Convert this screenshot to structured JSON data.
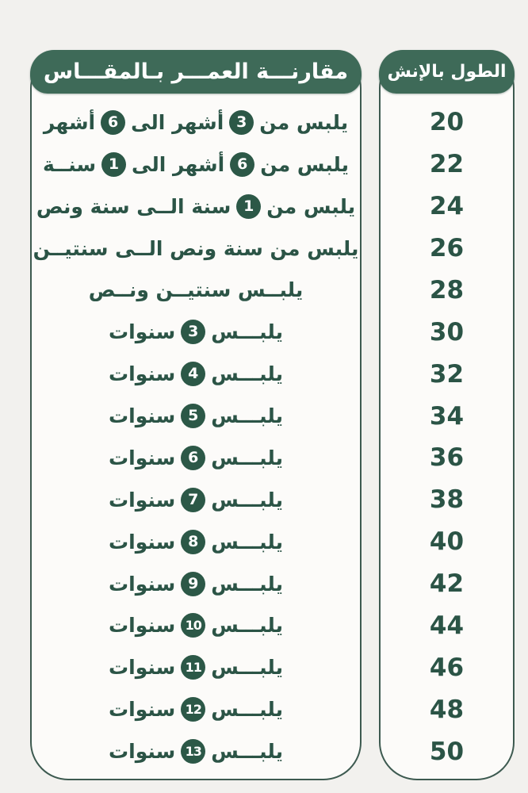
{
  "colors": {
    "page_background": "#f2f1ee",
    "header_green": "#3e6a58",
    "border_green": "#3d5a50",
    "text_green": "#2b5446",
    "badge_green": "#2c5847",
    "panel_background": "#fcfbf9",
    "header_text": "#ffffff"
  },
  "left_panel": {
    "header": "مقارنـــة العمـــر بـالمقـــاس",
    "rows": [
      {
        "segments": [
          {
            "t": "text",
            "v": "يلبس من"
          },
          {
            "t": "badge",
            "v": "3"
          },
          {
            "t": "text",
            "v": "أشهر الى"
          },
          {
            "t": "badge",
            "v": "6"
          },
          {
            "t": "text",
            "v": "أشهر"
          }
        ]
      },
      {
        "segments": [
          {
            "t": "text",
            "v": "يلبس من"
          },
          {
            "t": "badge",
            "v": "6"
          },
          {
            "t": "text",
            "v": "أشهر الى"
          },
          {
            "t": "badge",
            "v": "1"
          },
          {
            "t": "text",
            "v": "سنــة"
          }
        ]
      },
      {
        "segments": [
          {
            "t": "text",
            "v": "يلبس من"
          },
          {
            "t": "badge",
            "v": "1"
          },
          {
            "t": "text",
            "v": "سنة الــى سنة ونص"
          }
        ]
      },
      {
        "segments": [
          {
            "t": "text",
            "v": "يلبس من سنة ونص الــى سنتيــن"
          }
        ]
      },
      {
        "segments": [
          {
            "t": "text",
            "v": "يلبــس سنتيــن ونــص"
          }
        ]
      },
      {
        "segments": [
          {
            "t": "text",
            "v": "يلبـــس"
          },
          {
            "t": "badge",
            "v": "3"
          },
          {
            "t": "text",
            "v": "سنوات"
          }
        ]
      },
      {
        "segments": [
          {
            "t": "text",
            "v": "يلبـــس"
          },
          {
            "t": "badge",
            "v": "4"
          },
          {
            "t": "text",
            "v": "سنوات"
          }
        ]
      },
      {
        "segments": [
          {
            "t": "text",
            "v": "يلبـــس"
          },
          {
            "t": "badge",
            "v": "5"
          },
          {
            "t": "text",
            "v": "سنوات"
          }
        ]
      },
      {
        "segments": [
          {
            "t": "text",
            "v": "يلبـــس"
          },
          {
            "t": "badge",
            "v": "6"
          },
          {
            "t": "text",
            "v": "سنوات"
          }
        ]
      },
      {
        "segments": [
          {
            "t": "text",
            "v": "يلبـــس"
          },
          {
            "t": "badge",
            "v": "7"
          },
          {
            "t": "text",
            "v": "سنوات"
          }
        ]
      },
      {
        "segments": [
          {
            "t": "text",
            "v": "يلبـــس"
          },
          {
            "t": "badge",
            "v": "8"
          },
          {
            "t": "text",
            "v": "سنوات"
          }
        ]
      },
      {
        "segments": [
          {
            "t": "text",
            "v": "يلبـــس"
          },
          {
            "t": "badge",
            "v": "9"
          },
          {
            "t": "text",
            "v": "سنوات"
          }
        ]
      },
      {
        "segments": [
          {
            "t": "text",
            "v": "يلبـــس"
          },
          {
            "t": "badge",
            "v": "10"
          },
          {
            "t": "text",
            "v": "سنوات"
          }
        ]
      },
      {
        "segments": [
          {
            "t": "text",
            "v": "يلبـــس"
          },
          {
            "t": "badge",
            "v": "11"
          },
          {
            "t": "text",
            "v": "سنوات"
          }
        ]
      },
      {
        "segments": [
          {
            "t": "text",
            "v": "يلبـــس"
          },
          {
            "t": "badge",
            "v": "12"
          },
          {
            "t": "text",
            "v": "سنوات"
          }
        ]
      },
      {
        "segments": [
          {
            "t": "text",
            "v": "يلبـــس"
          },
          {
            "t": "badge",
            "v": "13"
          },
          {
            "t": "text",
            "v": "سنوات"
          }
        ]
      }
    ]
  },
  "right_panel": {
    "header": "الطول بالإنش",
    "values": [
      "20",
      "22",
      "24",
      "26",
      "28",
      "30",
      "32",
      "34",
      "36",
      "38",
      "40",
      "42",
      "44",
      "46",
      "48",
      "50"
    ]
  },
  "chart_data": {
    "type": "table",
    "title": "مقارنة العمر بالمقاس",
    "columns": [
      "العمر",
      "الطول بالإنش"
    ],
    "rows": [
      [
        "يلبس من 3 أشهر الى 6 أشهر",
        20
      ],
      [
        "يلبس من 6 أشهر الى 1 سنة",
        22
      ],
      [
        "يلبس من 1 سنة الى سنة ونص",
        24
      ],
      [
        "يلبس من سنة ونص الى سنتين",
        26
      ],
      [
        "يلبس سنتين ونص",
        28
      ],
      [
        "يلبس 3 سنوات",
        30
      ],
      [
        "يلبس 4 سنوات",
        32
      ],
      [
        "يلبس 5 سنوات",
        34
      ],
      [
        "يلبس 6 سنوات",
        36
      ],
      [
        "يلبس 7 سنوات",
        38
      ],
      [
        "يلبس 8 سنوات",
        40
      ],
      [
        "يلبس 9 سنوات",
        42
      ],
      [
        "يلبس 10 سنوات",
        44
      ],
      [
        "يلبس 11 سنوات",
        46
      ],
      [
        "يلبس 12 سنوات",
        48
      ],
      [
        "يلبس 13 سنوات",
        50
      ]
    ]
  }
}
